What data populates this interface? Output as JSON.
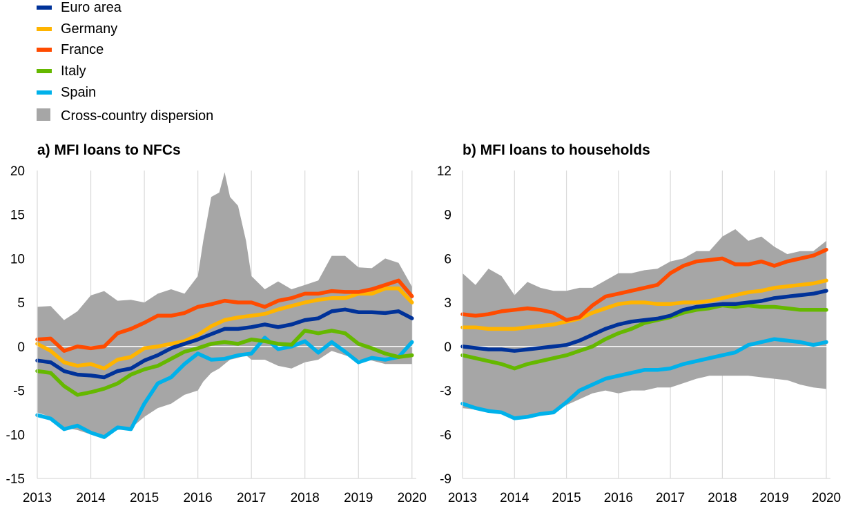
{
  "legend": [
    {
      "label": "Euro area",
      "color": "#003299",
      "kind": "line"
    },
    {
      "label": "Germany",
      "color": "#FFB400",
      "kind": "line"
    },
    {
      "label": "France",
      "color": "#FF4B00",
      "kind": "line"
    },
    {
      "label": "Italy",
      "color": "#65B800",
      "kind": "line"
    },
    {
      "label": "Spain",
      "color": "#00B1EA",
      "kind": "line"
    },
    {
      "label": "Cross-country dispersion",
      "color": "#A6A6A6",
      "kind": "area"
    }
  ],
  "chart_data": [
    {
      "type": "line",
      "title": "a) MFI loans to NFCs",
      "xlabel": "",
      "ylabel": "",
      "xlim": [
        2013.0,
        2020.08
      ],
      "ylim": [
        -15,
        20
      ],
      "yticks": [
        -15,
        -10,
        -5,
        0,
        5,
        10,
        15,
        20
      ],
      "xticks": [
        2013,
        2014,
        2015,
        2016,
        2017,
        2018,
        2019,
        2020
      ],
      "grid": true,
      "band": {
        "name": "Cross-country dispersion",
        "x": [
          2013.0,
          2013.25,
          2013.5,
          2013.75,
          2014.0,
          2014.25,
          2014.5,
          2014.75,
          2015.0,
          2015.25,
          2015.5,
          2015.75,
          2016.0,
          2016.1,
          2016.25,
          2016.4,
          2016.5,
          2016.6,
          2016.75,
          2016.9,
          2017.0,
          2017.25,
          2017.5,
          2017.75,
          2018.0,
          2018.25,
          2018.5,
          2018.75,
          2019.0,
          2019.25,
          2019.5,
          2019.75,
          2020.0
        ],
        "upper": [
          4.5,
          4.6,
          3.0,
          4.0,
          5.8,
          6.3,
          5.2,
          5.3,
          5.0,
          6.0,
          6.5,
          6.0,
          8.0,
          12.0,
          17.0,
          17.5,
          19.8,
          17.0,
          16.0,
          12.0,
          8.0,
          6.5,
          7.4,
          6.5,
          7.0,
          7.5,
          10.3,
          10.3,
          9.0,
          8.9,
          10.0,
          9.5,
          6.8
        ],
        "lower": [
          -7.5,
          -8.0,
          -9.2,
          -9.5,
          -10.0,
          -10.3,
          -9.5,
          -9.3,
          -8.0,
          -7.0,
          -6.5,
          -5.5,
          -5.0,
          -4.0,
          -3.0,
          -2.5,
          -2.0,
          -1.5,
          -1.3,
          -1.0,
          -1.5,
          -1.5,
          -2.2,
          -2.5,
          -1.8,
          -1.5,
          -0.5,
          -1.0,
          -1.5,
          -1.6,
          -2.0,
          -2.0,
          -2.0
        ]
      },
      "x": [
        2013.0,
        2013.25,
        2013.5,
        2013.75,
        2014.0,
        2014.25,
        2014.5,
        2014.75,
        2015.0,
        2015.25,
        2015.5,
        2015.75,
        2016.0,
        2016.25,
        2016.5,
        2016.75,
        2017.0,
        2017.25,
        2017.5,
        2017.75,
        2018.0,
        2018.25,
        2018.5,
        2018.75,
        2019.0,
        2019.25,
        2019.5,
        2019.75,
        2020.0
      ],
      "series": [
        {
          "name": "Euro area",
          "color": "#003299",
          "values": [
            -1.6,
            -1.8,
            -2.8,
            -3.2,
            -3.3,
            -3.5,
            -2.8,
            -2.5,
            -1.6,
            -1.0,
            -0.2,
            0.3,
            0.8,
            1.4,
            2.0,
            2.0,
            2.2,
            2.5,
            2.2,
            2.5,
            3.0,
            3.2,
            4.0,
            4.2,
            3.9,
            3.9,
            3.8,
            4.0,
            3.2
          ]
        },
        {
          "name": "Germany",
          "color": "#FFB400",
          "values": [
            0.3,
            -0.5,
            -1.8,
            -2.2,
            -2.0,
            -2.5,
            -1.5,
            -1.2,
            -0.2,
            0.0,
            0.3,
            0.6,
            1.3,
            2.3,
            3.0,
            3.3,
            3.5,
            3.7,
            4.2,
            4.6,
            5.0,
            5.3,
            5.5,
            5.5,
            6.0,
            6.0,
            6.6,
            6.6,
            5.0
          ]
        },
        {
          "name": "France",
          "color": "#FF4B00",
          "values": [
            0.8,
            0.9,
            -0.5,
            0.0,
            -0.2,
            0.0,
            1.5,
            2.0,
            2.7,
            3.5,
            3.5,
            3.8,
            4.5,
            4.8,
            5.2,
            5.0,
            5.0,
            4.5,
            5.2,
            5.5,
            6.0,
            6.0,
            6.3,
            6.2,
            6.2,
            6.5,
            7.0,
            7.5,
            5.7
          ]
        },
        {
          "name": "Italy",
          "color": "#65B800",
          "values": [
            -2.8,
            -3.0,
            -4.5,
            -5.5,
            -5.2,
            -4.8,
            -4.2,
            -3.2,
            -2.6,
            -2.2,
            -1.4,
            -0.6,
            -0.2,
            0.3,
            0.5,
            0.3,
            0.8,
            0.6,
            0.3,
            0.2,
            1.8,
            1.5,
            1.8,
            1.5,
            0.3,
            -0.2,
            -0.8,
            -1.2,
            -1.0
          ]
        },
        {
          "name": "Spain",
          "color": "#00B1EA",
          "values": [
            -7.8,
            -8.2,
            -9.4,
            -9.0,
            -9.8,
            -10.3,
            -9.2,
            -9.4,
            -6.5,
            -4.2,
            -3.5,
            -2.0,
            -0.8,
            -1.5,
            -1.4,
            -1.0,
            -0.8,
            1.0,
            -0.3,
            0.0,
            0.6,
            -0.7,
            0.5,
            -0.6,
            -1.8,
            -1.3,
            -1.5,
            -1.2,
            0.5
          ]
        }
      ]
    },
    {
      "type": "line",
      "title": "b) MFI loans to households",
      "xlabel": "",
      "ylabel": "",
      "xlim": [
        2013.0,
        2020.08
      ],
      "ylim": [
        -9,
        12
      ],
      "yticks": [
        -9,
        -6,
        -3,
        0,
        3,
        6,
        9,
        12
      ],
      "xticks": [
        2013,
        2014,
        2015,
        2016,
        2017,
        2018,
        2019,
        2020
      ],
      "grid": true,
      "band": {
        "name": "Cross-country dispersion",
        "x": [
          2013.0,
          2013.25,
          2013.5,
          2013.75,
          2014.0,
          2014.25,
          2014.5,
          2014.75,
          2015.0,
          2015.25,
          2015.5,
          2015.75,
          2016.0,
          2016.25,
          2016.5,
          2016.75,
          2017.0,
          2017.25,
          2017.5,
          2017.75,
          2018.0,
          2018.25,
          2018.5,
          2018.75,
          2019.0,
          2019.25,
          2019.5,
          2019.75,
          2020.0
        ],
        "upper": [
          5.0,
          4.2,
          5.3,
          4.8,
          3.5,
          4.4,
          4.0,
          3.8,
          3.8,
          4.0,
          4.0,
          4.5,
          5.0,
          5.0,
          5.2,
          5.3,
          5.8,
          6.0,
          6.5,
          6.5,
          7.5,
          8.0,
          7.2,
          7.5,
          6.8,
          6.3,
          6.5,
          6.5,
          7.2
        ],
        "lower": [
          -4.2,
          -4.3,
          -4.5,
          -4.6,
          -4.9,
          -4.8,
          -4.7,
          -4.5,
          -4.0,
          -3.6,
          -3.2,
          -3.0,
          -3.2,
          -3.0,
          -3.0,
          -2.8,
          -2.8,
          -2.5,
          -2.2,
          -2.0,
          -2.0,
          -2.0,
          -2.0,
          -2.1,
          -2.2,
          -2.3,
          -2.6,
          -2.8,
          -2.9
        ]
      },
      "x": [
        2013.0,
        2013.25,
        2013.5,
        2013.75,
        2014.0,
        2014.25,
        2014.5,
        2014.75,
        2015.0,
        2015.25,
        2015.5,
        2015.75,
        2016.0,
        2016.25,
        2016.5,
        2016.75,
        2017.0,
        2017.25,
        2017.5,
        2017.75,
        2018.0,
        2018.25,
        2018.5,
        2018.75,
        2019.0,
        2019.25,
        2019.5,
        2019.75,
        2020.0
      ],
      "series": [
        {
          "name": "Euro area",
          "color": "#003299",
          "values": [
            0.0,
            -0.1,
            -0.2,
            -0.2,
            -0.3,
            -0.2,
            -0.1,
            0.0,
            0.1,
            0.4,
            0.8,
            1.2,
            1.5,
            1.7,
            1.8,
            1.9,
            2.1,
            2.5,
            2.7,
            2.8,
            2.9,
            2.9,
            3.0,
            3.1,
            3.3,
            3.4,
            3.5,
            3.6,
            3.8
          ]
        },
        {
          "name": "Germany",
          "color": "#FFB400",
          "values": [
            1.3,
            1.3,
            1.2,
            1.2,
            1.2,
            1.3,
            1.4,
            1.5,
            1.7,
            1.9,
            2.3,
            2.6,
            2.9,
            3.0,
            3.0,
            2.9,
            2.9,
            3.0,
            3.0,
            3.1,
            3.3,
            3.5,
            3.7,
            3.8,
            4.0,
            4.1,
            4.2,
            4.3,
            4.5
          ]
        },
        {
          "name": "France",
          "color": "#FF4B00",
          "values": [
            2.2,
            2.1,
            2.2,
            2.4,
            2.5,
            2.6,
            2.5,
            2.3,
            1.8,
            2.0,
            2.8,
            3.4,
            3.6,
            3.8,
            4.0,
            4.2,
            5.0,
            5.5,
            5.8,
            5.9,
            6.0,
            5.6,
            5.6,
            5.8,
            5.5,
            5.8,
            6.0,
            6.2,
            6.6
          ]
        },
        {
          "name": "Italy",
          "color": "#65B800",
          "values": [
            -0.6,
            -0.8,
            -1.0,
            -1.2,
            -1.5,
            -1.2,
            -1.0,
            -0.8,
            -0.6,
            -0.3,
            0.0,
            0.5,
            0.9,
            1.2,
            1.6,
            1.8,
            2.0,
            2.3,
            2.5,
            2.6,
            2.8,
            2.7,
            2.8,
            2.7,
            2.7,
            2.6,
            2.5,
            2.5,
            2.5
          ]
        },
        {
          "name": "Spain",
          "color": "#00B1EA",
          "values": [
            -3.9,
            -4.2,
            -4.4,
            -4.5,
            -4.9,
            -4.8,
            -4.6,
            -4.5,
            -3.8,
            -3.0,
            -2.6,
            -2.2,
            -2.0,
            -1.8,
            -1.6,
            -1.6,
            -1.5,
            -1.2,
            -1.0,
            -0.8,
            -0.6,
            -0.4,
            0.1,
            0.3,
            0.5,
            0.4,
            0.3,
            0.1,
            0.3
          ]
        }
      ]
    }
  ]
}
